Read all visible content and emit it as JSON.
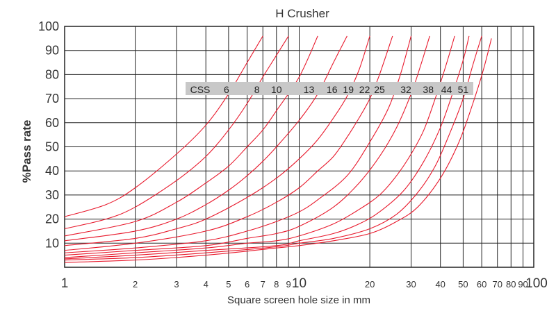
{
  "chart_data": {
    "type": "line",
    "title": "H Crusher",
    "xlabel": "Square screen hole size in mm",
    "ylabel": "%Pass rate",
    "xscale": "log",
    "xlim": [
      1,
      100
    ],
    "ylim": [
      0,
      100
    ],
    "grid": true,
    "line_color": "#e8192c",
    "x_ticks": [
      {
        "v": 1,
        "label": "1",
        "major": true
      },
      {
        "v": 2,
        "label": "2",
        "major": false
      },
      {
        "v": 3,
        "label": "3",
        "major": false
      },
      {
        "v": 4,
        "label": "4",
        "major": false
      },
      {
        "v": 5,
        "label": "5",
        "major": false
      },
      {
        "v": 6,
        "label": "6",
        "major": false
      },
      {
        "v": 7,
        "label": "7",
        "major": false
      },
      {
        "v": 8,
        "label": "8",
        "major": false
      },
      {
        "v": 9,
        "label": "9",
        "major": false
      },
      {
        "v": 10,
        "label": "10",
        "major": true
      },
      {
        "v": 20,
        "label": "20",
        "major": false
      },
      {
        "v": 30,
        "label": "30",
        "major": false
      },
      {
        "v": 40,
        "label": "40",
        "major": false
      },
      {
        "v": 50,
        "label": "50",
        "major": false
      },
      {
        "v": 60,
        "label": "60",
        "major": false
      },
      {
        "v": 70,
        "label": "70",
        "major": false
      },
      {
        "v": 80,
        "label": "80",
        "major": false
      },
      {
        "v": 90,
        "label": "90",
        "major": false
      },
      {
        "v": 100,
        "label": "100",
        "major": true
      }
    ],
    "y_ticks": [
      {
        "v": 10,
        "label": "10",
        "major": false
      },
      {
        "v": 20,
        "label": "20",
        "major": false
      },
      {
        "v": 30,
        "label": "30",
        "major": false
      },
      {
        "v": 40,
        "label": "40",
        "major": false
      },
      {
        "v": 50,
        "label": "50",
        "major": false
      },
      {
        "v": 60,
        "label": "60",
        "major": false
      },
      {
        "v": 70,
        "label": "70",
        "major": false
      },
      {
        "v": 80,
        "label": "80",
        "major": false
      },
      {
        "v": 90,
        "label": "90",
        "major": false
      },
      {
        "v": 100,
        "label": "100",
        "major": true
      }
    ],
    "css_legend": {
      "label": "CSS",
      "items": [
        {
          "label": "6",
          "x": 4.9
        },
        {
          "label": "8",
          "x": 6.6
        },
        {
          "label": "10",
          "x": 8.0
        },
        {
          "label": "13",
          "x": 11.0
        },
        {
          "label": "16",
          "x": 13.8
        },
        {
          "label": "19",
          "x": 16.2
        },
        {
          "label": "22",
          "x": 19.0
        },
        {
          "label": "25",
          "x": 22.0
        },
        {
          "label": "32",
          "x": 28.5
        },
        {
          "label": "38",
          "x": 35.5
        },
        {
          "label": "44",
          "x": 42.5
        },
        {
          "label": "51",
          "x": 50.0
        }
      ]
    },
    "series": [
      {
        "css": "6",
        "points": [
          [
            1,
            21
          ],
          [
            1.5,
            26
          ],
          [
            2,
            33
          ],
          [
            3,
            47
          ],
          [
            4,
            59
          ],
          [
            5,
            72
          ],
          [
            6,
            85
          ],
          [
            7,
            96
          ]
        ]
      },
      {
        "css": "8",
        "points": [
          [
            1,
            16
          ],
          [
            1.5,
            20
          ],
          [
            2,
            25
          ],
          [
            3,
            36
          ],
          [
            4,
            46
          ],
          [
            5,
            57
          ],
          [
            6,
            68
          ],
          [
            7,
            79
          ],
          [
            8,
            88
          ],
          [
            9,
            96
          ]
        ]
      },
      {
        "css": "10",
        "points": [
          [
            1,
            13
          ],
          [
            2,
            19
          ],
          [
            3,
            27
          ],
          [
            4,
            35
          ],
          [
            5,
            42
          ],
          [
            6,
            50
          ],
          [
            7,
            57
          ],
          [
            8,
            65
          ],
          [
            10,
            79
          ],
          [
            12,
            96
          ]
        ]
      },
      {
        "css": "13",
        "points": [
          [
            1,
            11
          ],
          [
            2,
            15
          ],
          [
            3,
            20
          ],
          [
            4,
            26
          ],
          [
            5,
            32
          ],
          [
            6,
            38
          ],
          [
            7,
            44
          ],
          [
            8,
            50
          ],
          [
            10,
            61
          ],
          [
            12,
            72
          ],
          [
            14,
            85
          ],
          [
            16,
            96
          ]
        ]
      },
      {
        "css": "16",
        "points": [
          [
            1,
            9
          ],
          [
            2,
            12
          ],
          [
            3,
            16
          ],
          [
            4,
            20
          ],
          [
            6,
            29
          ],
          [
            8,
            37
          ],
          [
            10,
            45
          ],
          [
            12,
            53
          ],
          [
            14,
            62
          ],
          [
            16,
            71
          ],
          [
            18,
            82
          ],
          [
            20,
            96
          ]
        ]
      },
      {
        "css": "19",
        "points": [
          [
            1,
            7
          ],
          [
            2,
            10
          ],
          [
            4,
            15
          ],
          [
            6,
            21
          ],
          [
            8,
            27
          ],
          [
            10,
            33
          ],
          [
            12,
            40
          ],
          [
            14,
            46
          ],
          [
            16,
            54
          ],
          [
            18,
            62
          ],
          [
            20,
            70
          ],
          [
            22,
            80
          ],
          [
            25,
            96
          ]
        ]
      },
      {
        "css": "22",
        "points": [
          [
            1,
            6
          ],
          [
            2,
            8
          ],
          [
            4,
            11
          ],
          [
            6,
            15
          ],
          [
            8,
            19
          ],
          [
            10,
            23
          ],
          [
            12,
            28
          ],
          [
            16,
            38
          ],
          [
            20,
            52
          ],
          [
            24,
            66
          ],
          [
            27,
            80
          ],
          [
            30,
            96
          ]
        ]
      },
      {
        "css": "25",
        "points": [
          [
            1,
            5
          ],
          [
            2,
            7
          ],
          [
            4,
            9
          ],
          [
            6,
            12
          ],
          [
            8,
            14
          ],
          [
            10,
            17
          ],
          [
            14,
            25
          ],
          [
            18,
            35
          ],
          [
            22,
            46
          ],
          [
            26,
            58
          ],
          [
            30,
            72
          ],
          [
            33,
            84
          ],
          [
            36,
            96
          ]
        ]
      },
      {
        "css": "32",
        "points": [
          [
            1,
            4
          ],
          [
            2,
            6
          ],
          [
            4,
            8
          ],
          [
            6,
            10
          ],
          [
            8,
            11
          ],
          [
            10,
            13
          ],
          [
            14,
            18
          ],
          [
            18,
            24
          ],
          [
            22,
            30
          ],
          [
            26,
            38
          ],
          [
            30,
            47
          ],
          [
            34,
            57
          ],
          [
            38,
            70
          ],
          [
            42,
            83
          ],
          [
            46,
            96
          ]
        ]
      },
      {
        "css": "38",
        "points": [
          [
            1,
            3.5
          ],
          [
            2,
            5
          ],
          [
            4,
            7
          ],
          [
            8,
            9
          ],
          [
            10,
            11
          ],
          [
            14,
            14
          ],
          [
            18,
            18
          ],
          [
            22,
            23
          ],
          [
            28,
            32
          ],
          [
            34,
            44
          ],
          [
            40,
            58
          ],
          [
            45,
            72
          ],
          [
            50,
            86
          ],
          [
            53,
            96
          ]
        ]
      },
      {
        "css": "44",
        "points": [
          [
            1,
            3
          ],
          [
            2,
            4
          ],
          [
            4,
            6
          ],
          [
            8,
            8.5
          ],
          [
            10,
            10
          ],
          [
            14,
            12
          ],
          [
            20,
            16
          ],
          [
            26,
            22
          ],
          [
            32,
            31
          ],
          [
            38,
            42
          ],
          [
            44,
            56
          ],
          [
            50,
            70
          ],
          [
            55,
            84
          ],
          [
            60,
            96
          ]
        ]
      },
      {
        "css": "51",
        "points": [
          [
            1,
            2
          ],
          [
            2,
            3
          ],
          [
            4,
            5
          ],
          [
            8,
            8
          ],
          [
            10,
            9
          ],
          [
            14,
            11
          ],
          [
            20,
            14
          ],
          [
            26,
            19
          ],
          [
            32,
            25
          ],
          [
            40,
            37
          ],
          [
            48,
            52
          ],
          [
            55,
            68
          ],
          [
            61,
            82
          ],
          [
            66,
            95
          ]
        ]
      }
    ]
  }
}
